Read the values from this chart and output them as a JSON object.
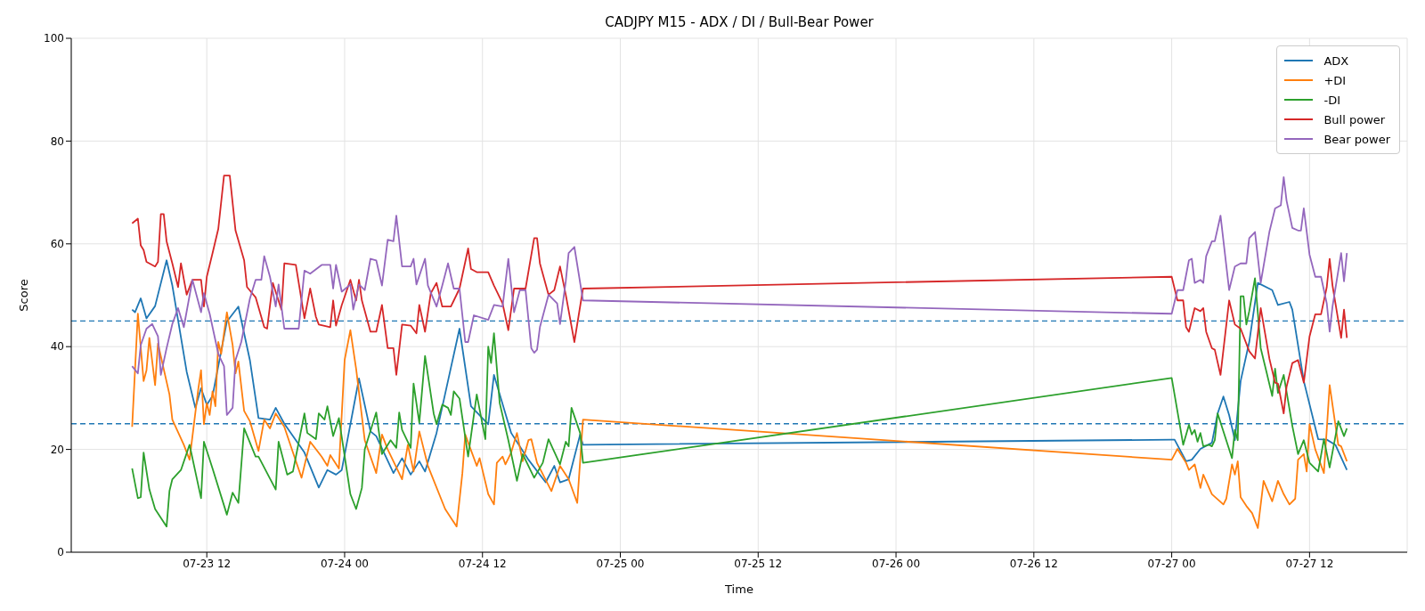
{
  "chart_data": {
    "type": "line",
    "title": "CADJPY M15 - ADX / DI / Bull-Bear Power",
    "xlabel": "Time",
    "ylabel": "Score",
    "xlim": [
      "--07-23T00:12",
      "--07-27T20:30"
    ],
    "xticks": [
      {
        "value": "--07-23T12:00",
        "label": "07-23 12"
      },
      {
        "value": "--07-24T00:00",
        "label": "07-24 00"
      },
      {
        "value": "--07-24T12:00",
        "label": "07-24 12"
      },
      {
        "value": "--07-25T00:00",
        "label": "07-25 00"
      },
      {
        "value": "--07-25T12:00",
        "label": "07-25 12"
      },
      {
        "value": "--07-26T00:00",
        "label": "07-26 00"
      },
      {
        "value": "--07-26T12:00",
        "label": "07-26 12"
      },
      {
        "value": "--07-27T00:00",
        "label": "07-27 00"
      },
      {
        "value": "--07-27T12:00",
        "label": "07-27 12"
      }
    ],
    "ylim": [
      0,
      100
    ],
    "yticks": [
      0,
      20,
      40,
      60,
      80,
      100
    ],
    "grid": true,
    "legend": "top right",
    "ref_lines": [
      {
        "axis": "y",
        "value": 45,
        "color": "#1f77b4",
        "line_style": "dashed"
      },
      {
        "axis": "y",
        "value": 25,
        "color": "#1f77b4",
        "line_style": "dashed"
      }
    ],
    "series": [
      {
        "name": "ADX",
        "color": "#1f77b4",
        "x": [
          "--07-23T05:30",
          "--07-23T05:45",
          "--07-23T06:15",
          "--07-23T06:45",
          "--07-23T07:30",
          "--07-23T08:30",
          "--07-23T09:00",
          "--07-23T10:15",
          "--07-23T11:00",
          "--07-23T11:30",
          "--07-23T12:00",
          "--07-23T12:30",
          "--07-23T13:45",
          "--07-23T14:45",
          "--07-23T15:45",
          "--07-23T16:30",
          "--07-23T17:30",
          "--07-23T18:00",
          "--07-23T18:45",
          "--07-23T20:30",
          "--07-23T21:45",
          "--07-23T22:30",
          "--07-23T23:15",
          "--07-23T23:45",
          "--07-24T01:15",
          "--07-24T02:15",
          "--07-24T02:45",
          "--07-24T04:15",
          "--07-24T05:00",
          "--07-24T05:45",
          "--07-24T06:30",
          "--07-24T07:00",
          "--07-24T08:00",
          "--07-24T09:15",
          "--07-24T10:00",
          "--07-24T11:00",
          "--07-24T12:30",
          "--07-24T13:00",
          "--07-24T14:30",
          "--07-24T16:00",
          "--07-24T17:30",
          "--07-24T18:15",
          "--07-24T18:45",
          "--07-24T19:30",
          "--07-24T20:30",
          "--07-24T20:45",
          "--07-27T00:00",
          "--07-27T00:15",
          "--07-27T01:15",
          "--07-27T01:45",
          "--07-27T02:30",
          "--07-27T03:30",
          "--07-27T04:00",
          "--07-27T04:30",
          "--07-27T05:00",
          "--07-27T05:30",
          "--07-27T06:00",
          "--07-27T06:45",
          "--07-27T07:30",
          "--07-27T08:45",
          "--07-27T09:15",
          "--07-27T10:15",
          "--07-27T10:30",
          "--07-27T11:30",
          "--07-27T12:45",
          "--07-27T13:30",
          "--07-27T14:15",
          "--07-27T15:15"
        ],
        "values": [
          47.2,
          46.7,
          49.4,
          45.5,
          47.9,
          56.8,
          51.9,
          35.1,
          28.1,
          31.9,
          28.7,
          30.4,
          44.9,
          47.8,
          37.4,
          26.1,
          25.8,
          28.1,
          25.0,
          19.4,
          12.6,
          16.0,
          15.1,
          16.0,
          33.8,
          23.5,
          22.6,
          15.4,
          18.3,
          15.1,
          17.7,
          15.7,
          23.2,
          35.9,
          43.5,
          28.4,
          24.9,
          34.5,
          23.2,
          18.0,
          13.6,
          16.8,
          13.6,
          14.2,
          22.9,
          20.9,
          21.9,
          21.9,
          17.7,
          18.0,
          20.1,
          21.3,
          27.0,
          30.3,
          26.7,
          21.8,
          33.3,
          40.9,
          52.4,
          51.0,
          48.1,
          48.7,
          47.2,
          33.3,
          22.0,
          21.9,
          20.9,
          16.0
        ]
      },
      {
        "name": "+DI",
        "color": "#ff7f0e",
        "x": [
          "--07-23T05:30",
          "--07-23T06:00",
          "--07-23T06:30",
          "--07-23T06:45",
          "--07-23T07:00",
          "--07-23T07:30",
          "--07-23T07:45",
          "--07-23T08:45",
          "--07-23T09:00",
          "--07-23T10:00",
          "--07-23T10:30",
          "--07-23T11:15",
          "--07-23T11:30",
          "--07-23T11:45",
          "--07-23T12:00",
          "--07-23T12:15",
          "--07-23T12:30",
          "--07-23T12:45",
          "--07-23T13:00",
          "--07-23T13:15",
          "--07-23T13:45",
          "--07-23T14:15",
          "--07-23T14:30",
          "--07-23T14:45",
          "--07-23T15:15",
          "--07-23T15:45",
          "--07-23T16:30",
          "--07-23T17:00",
          "--07-23T17:30",
          "--07-23T18:00",
          "--07-23T18:45",
          "--07-23T19:30",
          "--07-23T20:15",
          "--07-23T21:00",
          "--07-23T22:00",
          "--07-23T22:30",
          "--07-23T22:45",
          "--07-23T23:30",
          "--07-24T00:00",
          "--07-24T00:30",
          "--07-24T01:00",
          "--07-24T01:45",
          "--07-24T02:45",
          "--07-24T03:15",
          "--07-24T03:45",
          "--07-24T05:00",
          "--07-24T05:30",
          "--07-24T06:00",
          "--07-24T06:30",
          "--07-24T07:15",
          "--07-24T08:45",
          "--07-24T09:45",
          "--07-24T10:15",
          "--07-24T10:30",
          "--07-24T11:30",
          "--07-24T11:45",
          "--07-24T12:30",
          "--07-24T13:00",
          "--07-24T13:15",
          "--07-24T13:45",
          "--07-24T14:00",
          "--07-24T14:30",
          "--07-24T15:00",
          "--07-24T15:30",
          "--07-24T16:00",
          "--07-24T16:15",
          "--07-24T16:45",
          "--07-24T18:00",
          "--07-24T18:45",
          "--07-24T19:30",
          "--07-24T20:15",
          "--07-24T20:45",
          "--07-27T00:00",
          "--07-27T00:30",
          "--07-27T01:15",
          "--07-27T01:30",
          "--07-27T02:00",
          "--07-27T02:30",
          "--07-27T02:45",
          "--07-27T03:30",
          "--07-27T04:30",
          "--07-27T04:45",
          "--07-27T05:15",
          "--07-27T05:30",
          "--07-27T05:45",
          "--07-27T06:00",
          "--07-27T06:30",
          "--07-27T07:00",
          "--07-27T07:30",
          "--07-27T08:00",
          "--07-27T08:45",
          "--07-27T09:15",
          "--07-27T09:45",
          "--07-27T10:15",
          "--07-27T10:45",
          "--07-27T11:00",
          "--07-27T11:30",
          "--07-27T11:45",
          "--07-27T12:00",
          "--07-27T12:30",
          "--07-27T13:15",
          "--07-27T13:45",
          "--07-27T14:30",
          "--07-27T14:45",
          "--07-27T15:15"
        ],
        "values": [
          24.4,
          46.4,
          33.3,
          35.4,
          41.7,
          32.5,
          40.6,
          30.7,
          25.8,
          20.9,
          18.0,
          31.6,
          35.4,
          24.9,
          29.0,
          26.7,
          31.3,
          28.4,
          40.9,
          38.6,
          46.7,
          40.3,
          34.8,
          37.1,
          27.5,
          25.5,
          19.7,
          25.8,
          24.1,
          27.0,
          24.4,
          19.4,
          14.5,
          21.5,
          18.6,
          16.8,
          18.9,
          16.3,
          37.4,
          43.2,
          35.7,
          21.8,
          15.4,
          22.9,
          20.0,
          14.2,
          20.9,
          15.7,
          23.5,
          16.8,
          8.4,
          5.0,
          15.4,
          22.9,
          16.8,
          18.3,
          11.3,
          9.3,
          17.4,
          18.6,
          17.1,
          19.4,
          23.2,
          17.7,
          21.8,
          22.0,
          17.4,
          11.9,
          16.8,
          14.2,
          9.6,
          25.8,
          18.0,
          20.1,
          17.4,
          16.0,
          17.1,
          12.5,
          15.1,
          11.3,
          9.3,
          10.4,
          17.1,
          15.1,
          17.7,
          10.7,
          9.0,
          7.6,
          4.7,
          13.9,
          9.9,
          13.9,
          11.3,
          9.3,
          10.4,
          18.0,
          19.1,
          15.7,
          24.9,
          20.0,
          15.4,
          32.5,
          20.9,
          20.6,
          17.7
        ]
      },
      {
        "name": "-DI",
        "color": "#2ca02c",
        "x": [
          "--07-23T05:30",
          "--07-23T06:00",
          "--07-23T06:15",
          "--07-23T06:30",
          "--07-23T07:00",
          "--07-23T07:30",
          "--07-23T08:30",
          "--07-23T08:45",
          "--07-23T09:00",
          "--07-23T09:45",
          "--07-23T10:30",
          "--07-23T11:30",
          "--07-23T11:45",
          "--07-23T12:30",
          "--07-23T13:45",
          "--07-23T14:15",
          "--07-23T14:45",
          "--07-23T15:15",
          "--07-23T16:15",
          "--07-23T16:30",
          "--07-23T18:00",
          "--07-23T18:15",
          "--07-23T19:00",
          "--07-23T19:30",
          "--07-23T20:30",
          "--07-23T20:45",
          "--07-23T21:30",
          "--07-23T21:45",
          "--07-23T22:15",
          "--07-23T22:30",
          "--07-23T23:00",
          "--07-23T23:30",
          "--07-24T00:30",
          "--07-24T01:00",
          "--07-24T01:30",
          "--07-24T01:45",
          "--07-24T02:45",
          "--07-24T03:15",
          "--07-24T04:00",
          "--07-24T04:30",
          "--07-24T04:45",
          "--07-24T05:00",
          "--07-24T05:45",
          "--07-24T06:00",
          "--07-24T06:30",
          "--07-24T07:00",
          "--07-24T07:45",
          "--07-24T08:00",
          "--07-24T08:30",
          "--07-24T09:00",
          "--07-24T09:15",
          "--07-24T09:30",
          "--07-24T10:00",
          "--07-24T10:45",
          "--07-24T11:30",
          "--07-24T12:15",
          "--07-24T12:30",
          "--07-24T12:45",
          "--07-24T13:00",
          "--07-24T13:30",
          "--07-24T14:15",
          "--07-24T15:00",
          "--07-24T15:30",
          "--07-24T16:30",
          "--07-24T17:15",
          "--07-24T17:45",
          "--07-24T18:45",
          "--07-24T19:15",
          "--07-24T19:30",
          "--07-24T19:45",
          "--07-24T20:30",
          "--07-24T20:45",
          "--07-27T00:00",
          "--07-27T01:00",
          "--07-27T01:30",
          "--07-27T01:45",
          "--07-27T02:00",
          "--07-27T02:15",
          "--07-27T02:30",
          "--07-27T02:45",
          "--07-27T03:15",
          "--07-27T03:30",
          "--07-27T03:45",
          "--07-27T04:00",
          "--07-27T05:15",
          "--07-27T05:30",
          "--07-27T05:45",
          "--07-27T06:00",
          "--07-27T06:15",
          "--07-27T06:30",
          "--07-27T06:45",
          "--07-27T07:15",
          "--07-27T07:45",
          "--07-27T08:15",
          "--07-27T08:45",
          "--07-27T09:00",
          "--07-27T09:15",
          "--07-27T09:45",
          "--07-27T10:30",
          "--07-27T11:00",
          "--07-27T11:30",
          "--07-27T12:00",
          "--07-27T12:45",
          "--07-27T13:15",
          "--07-27T13:45",
          "--07-27T14:30",
          "--07-27T15:00",
          "--07-27T15:15"
        ],
        "values": [
          16.3,
          10.5,
          10.7,
          19.4,
          12.2,
          8.4,
          5.0,
          11.9,
          14.2,
          16.0,
          20.9,
          10.5,
          21.5,
          16.3,
          7.3,
          11.6,
          9.6,
          24.1,
          18.6,
          18.6,
          12.2,
          21.5,
          15.1,
          15.7,
          27.0,
          23.2,
          22.0,
          27.0,
          25.8,
          28.4,
          22.6,
          26.1,
          11.3,
          8.4,
          12.5,
          20.0,
          27.2,
          19.1,
          21.8,
          20.3,
          27.2,
          23.8,
          20.3,
          32.8,
          25.2,
          38.2,
          27.0,
          24.9,
          28.7,
          28.1,
          26.7,
          31.3,
          29.9,
          18.6,
          30.7,
          22.0,
          40.0,
          36.8,
          42.6,
          29.0,
          21.8,
          13.9,
          19.1,
          14.5,
          17.4,
          22.0,
          17.1,
          21.5,
          20.6,
          28.1,
          23.2,
          17.4,
          33.9,
          20.9,
          24.8,
          22.9,
          23.8,
          21.5,
          23.2,
          20.6,
          20.9,
          20.6,
          21.8,
          27.0,
          18.3,
          23.8,
          21.8,
          49.8,
          49.8,
          44.3,
          46.9,
          53.3,
          39.7,
          35.1,
          30.4,
          35.7,
          31.0,
          34.5,
          24.6,
          19.1,
          21.8,
          17.4,
          15.7,
          22.0,
          16.5,
          25.5,
          22.6,
          24.1
        ]
      },
      {
        "name": "Bull power",
        "color": "#d62728",
        "x": [
          "--07-23T05:30",
          "--07-23T06:00",
          "--07-23T06:15",
          "--07-23T06:30",
          "--07-23T06:45",
          "--07-23T07:30",
          "--07-23T07:45",
          "--07-23T08:00",
          "--07-23T08:15",
          "--07-23T08:30",
          "--07-23T09:00",
          "--07-23T09:30",
          "--07-23T09:45",
          "--07-23T10:15",
          "--07-23T10:45",
          "--07-23T11:30",
          "--07-23T11:45",
          "--07-23T12:00",
          "--07-23T12:30",
          "--07-23T13:00",
          "--07-23T13:30",
          "--07-23T14:00",
          "--07-23T14:30",
          "--07-23T15:15",
          "--07-23T15:30",
          "--07-23T16:15",
          "--07-23T17:00",
          "--07-23T17:15",
          "--07-23T17:45",
          "--07-23T18:30",
          "--07-23T18:45",
          "--07-23T19:45",
          "--07-23T20:30",
          "--07-23T21:00",
          "--07-23T21:30",
          "--07-23T21:45",
          "--07-23T22:45",
          "--07-23T23:00",
          "--07-23T23:15",
          "--07-23T23:45",
          "--07-24T00:30",
          "--07-24T01:00",
          "--07-24T01:15",
          "--07-24T01:30",
          "--07-24T02:15",
          "--07-24T02:45",
          "--07-24T03:15",
          "--07-24T03:45",
          "--07-24T04:15",
          "--07-24T04:30",
          "--07-24T05:00",
          "--07-24T05:45",
          "--07-24T06:15",
          "--07-24T06:30",
          "--07-24T07:00",
          "--07-24T07:30",
          "--07-24T08:00",
          "--07-24T08:30",
          "--07-24T09:15",
          "--07-24T10:00",
          "--07-24T10:45",
          "--07-24T11:00",
          "--07-24T11:30",
          "--07-24T12:30",
          "--07-24T13:00",
          "--07-24T13:45",
          "--07-24T14:15",
          "--07-24T14:45",
          "--07-24T15:45",
          "--07-24T16:30",
          "--07-24T16:45",
          "--07-24T17:00",
          "--07-24T17:45",
          "--07-24T18:15",
          "--07-24T18:45",
          "--07-24T19:15",
          "--07-24T20:00",
          "--07-24T20:45",
          "--07-27T00:00",
          "--07-27T00:30",
          "--07-27T01:00",
          "--07-27T01:15",
          "--07-27T01:30",
          "--07-27T02:00",
          "--07-27T02:30",
          "--07-27T02:45",
          "--07-27T03:00",
          "--07-27T03:30",
          "--07-27T03:45",
          "--07-27T04:15",
          "--07-27T05:00",
          "--07-27T05:30",
          "--07-27T06:00",
          "--07-27T06:45",
          "--07-27T07:15",
          "--07-27T07:45",
          "--07-27T08:30",
          "--07-27T09:00",
          "--07-27T09:15",
          "--07-27T09:45",
          "--07-27T10:00",
          "--07-27T10:30",
          "--07-27T11:00",
          "--07-27T11:30",
          "--07-27T12:00",
          "--07-27T12:30",
          "--07-27T13:00",
          "--07-27T13:30",
          "--07-27T13:45",
          "--07-27T14:00",
          "--07-27T14:45",
          "--07-27T15:00",
          "--07-27T15:15"
        ],
        "values": [
          64.0,
          64.9,
          59.7,
          58.8,
          56.5,
          55.6,
          56.5,
          65.8,
          65.8,
          60.5,
          56.2,
          51.6,
          56.2,
          50.1,
          53.0,
          53.0,
          47.8,
          53.6,
          58.2,
          62.9,
          73.3,
          73.3,
          62.6,
          56.8,
          51.6,
          49.6,
          43.8,
          43.5,
          52.4,
          47.2,
          56.2,
          55.9,
          45.5,
          51.3,
          45.8,
          44.3,
          43.8,
          49.0,
          44.1,
          48.1,
          53.0,
          49.0,
          53.0,
          49.0,
          42.9,
          42.9,
          48.1,
          39.7,
          39.7,
          34.5,
          44.3,
          44.1,
          42.6,
          48.1,
          42.9,
          50.4,
          52.4,
          47.8,
          47.8,
          51.3,
          59.1,
          55.1,
          54.5,
          54.5,
          51.9,
          48.4,
          43.2,
          51.3,
          51.3,
          61.1,
          61.1,
          56.2,
          50.1,
          51.0,
          55.6,
          50.1,
          40.9,
          51.3,
          53.6,
          49.0,
          49.0,
          43.8,
          42.9,
          47.5,
          46.9,
          47.5,
          42.9,
          39.7,
          39.4,
          34.5,
          49.0,
          44.3,
          43.5,
          39.1,
          37.7,
          47.5,
          37.7,
          33.0,
          32.8,
          27.0,
          32.2,
          36.8,
          37.4,
          33.0,
          42.0,
          46.3,
          46.3,
          51.6,
          57.1,
          51.9,
          41.7,
          47.2,
          41.7
        ]
      },
      {
        "name": "Bear power",
        "color": "#9467bd",
        "x": [
          "--07-23T05:30",
          "--07-23T06:00",
          "--07-23T06:15",
          "--07-23T06:45",
          "--07-23T07:15",
          "--07-23T07:45",
          "--07-23T08:00",
          "--07-23T08:30",
          "--07-23T09:00",
          "--07-23T09:30",
          "--07-23T10:00",
          "--07-23T10:45",
          "--07-23T11:30",
          "--07-23T11:45",
          "--07-23T12:15",
          "--07-23T13:00",
          "--07-23T13:30",
          "--07-23T13:45",
          "--07-23T14:15",
          "--07-23T14:30",
          "--07-23T15:00",
          "--07-23T15:45",
          "--07-23T16:15",
          "--07-23T16:45",
          "--07-23T17:00",
          "--07-23T17:30",
          "--07-23T18:00",
          "--07-23T18:15",
          "--07-23T18:45",
          "--07-23T20:00",
          "--07-23T20:30",
          "--07-23T21:00",
          "--07-23T22:00",
          "--07-23T22:45",
          "--07-23T23:00",
          "--07-23T23:15",
          "--07-23T23:45",
          "--07-24T00:30",
          "--07-24T00:45",
          "--07-24T01:15",
          "--07-24T01:45",
          "--07-24T02:15",
          "--07-24T02:45",
          "--07-24T03:15",
          "--07-24T03:45",
          "--07-24T04:15",
          "--07-24T04:30",
          "--07-24T05:00",
          "--07-24T05:45",
          "--07-24T06:00",
          "--07-24T06:15",
          "--07-24T07:00",
          "--07-24T07:15",
          "--07-24T08:00",
          "--07-24T08:30",
          "--07-24T09:00",
          "--07-24T09:30",
          "--07-24T10:00",
          "--07-24T10:30",
          "--07-24T10:45",
          "--07-24T11:15",
          "--07-24T12:30",
          "--07-24T13:00",
          "--07-24T13:45",
          "--07-24T14:15",
          "--07-24T14:45",
          "--07-24T15:15",
          "--07-24T15:45",
          "--07-24T16:15",
          "--07-24T16:30",
          "--07-24T16:45",
          "--07-24T17:00",
          "--07-24T17:45",
          "--07-24T18:30",
          "--07-24T18:45",
          "--07-24T19:15",
          "--07-24T19:30",
          "--07-24T20:00",
          "--07-24T20:45",
          "--07-27T00:00",
          "--07-27T00:30",
          "--07-27T01:00",
          "--07-27T01:30",
          "--07-27T01:45",
          "--07-27T02:00",
          "--07-27T02:30",
          "--07-27T02:45",
          "--07-27T03:00",
          "--07-27T03:30",
          "--07-27T03:45",
          "--07-27T04:15",
          "--07-27T05:00",
          "--07-27T05:30",
          "--07-27T06:00",
          "--07-27T06:30",
          "--07-27T06:45",
          "--07-27T07:15",
          "--07-27T07:45",
          "--07-27T08:30",
          "--07-27T09:00",
          "--07-27T09:30",
          "--07-27T09:45",
          "--07-27T10:00",
          "--07-27T10:30",
          "--07-27T11:00",
          "--07-27T11:15",
          "--07-27T11:30",
          "--07-27T12:00",
          "--07-27T12:30",
          "--07-27T13:00",
          "--07-27T13:30",
          "--07-27T13:45",
          "--07-27T14:00",
          "--07-27T14:45",
          "--07-27T15:00",
          "--07-27T15:15"
        ],
        "values": [
          36.2,
          34.8,
          40.3,
          43.5,
          44.4,
          42.0,
          34.5,
          39.7,
          44.4,
          47.5,
          43.8,
          53.0,
          46.7,
          50.4,
          46.4,
          38.6,
          36.2,
          26.7,
          28.1,
          37.4,
          40.9,
          49.3,
          53.0,
          53.0,
          57.6,
          53.6,
          47.8,
          52.1,
          43.5,
          43.5,
          54.8,
          54.2,
          55.9,
          55.9,
          51.3,
          55.9,
          50.7,
          52.1,
          47.2,
          52.1,
          51.0,
          57.1,
          56.8,
          51.9,
          60.8,
          60.5,
          65.5,
          55.6,
          55.6,
          57.1,
          52.1,
          57.1,
          51.9,
          47.8,
          51.9,
          56.2,
          51.3,
          51.3,
          40.9,
          40.9,
          46.1,
          45.2,
          48.1,
          47.8,
          57.1,
          46.7,
          51.0,
          51.0,
          39.7,
          38.8,
          39.4,
          43.8,
          50.1,
          48.4,
          44.4,
          52.7,
          58.2,
          59.4,
          49.0,
          46.4,
          51.0,
          51.0,
          56.8,
          57.1,
          52.4,
          53.0,
          52.4,
          57.6,
          60.5,
          60.5,
          65.5,
          51.0,
          55.6,
          56.2,
          56.2,
          61.1,
          62.3,
          52.4,
          62.3,
          66.9,
          67.5,
          73.0,
          68.4,
          63.1,
          62.6,
          62.6,
          66.9,
          57.9,
          53.6,
          53.6,
          48.4,
          42.9,
          47.8,
          58.2,
          52.7,
          58.2
        ]
      }
    ]
  }
}
